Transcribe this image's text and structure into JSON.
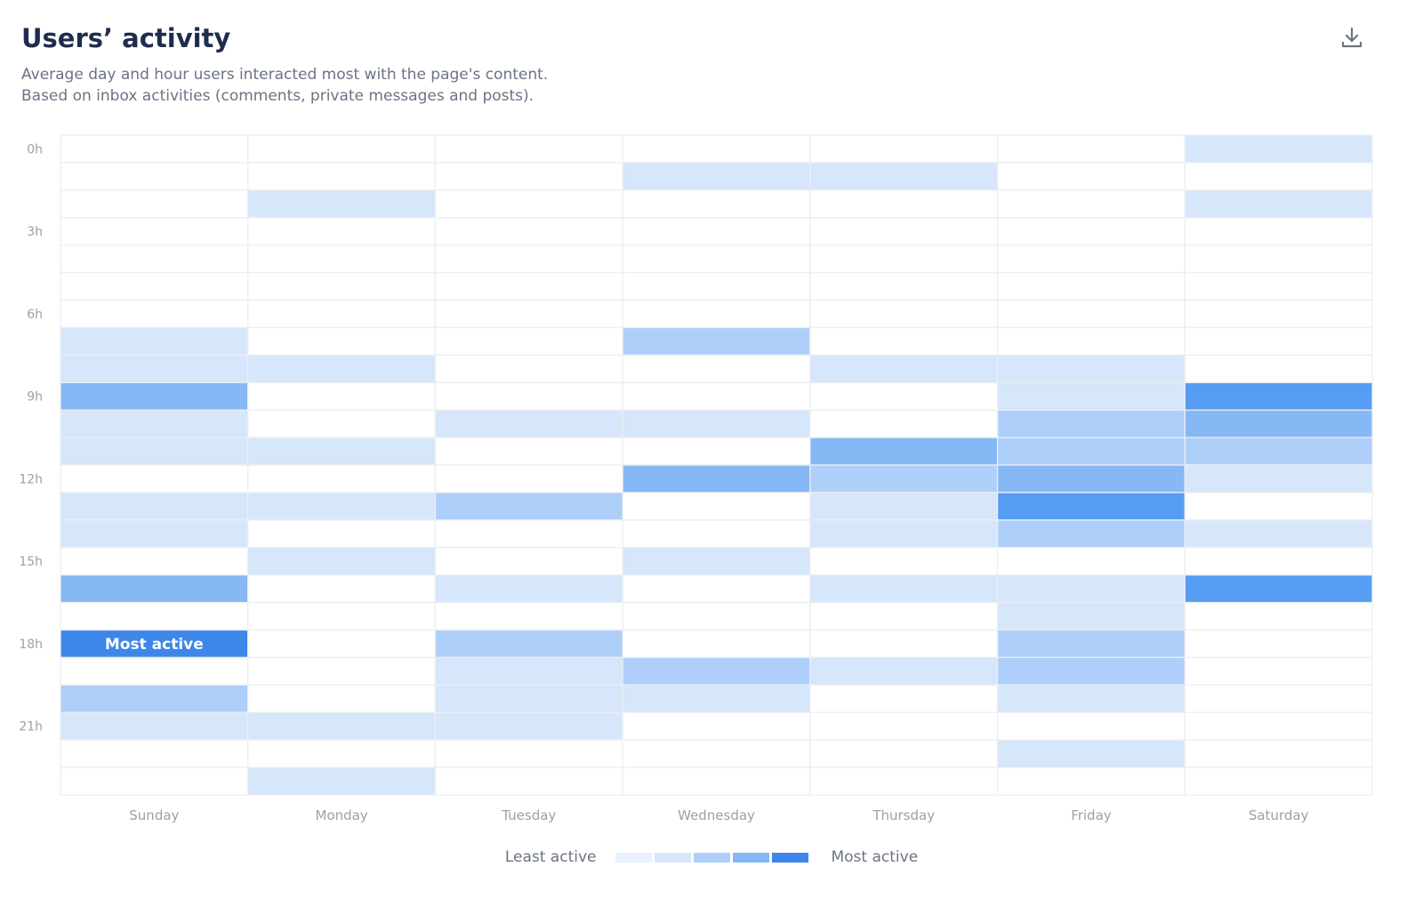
{
  "header": {
    "title": "Users’ activity",
    "subtitle_1": "Average day and hour users interacted most with the page's content.",
    "subtitle_2": "Based on inbox activities (comments, private messages and posts).",
    "download_icon": "download-icon"
  },
  "legend": {
    "least": "Least active",
    "most": "Most active",
    "colors": [
      "#e8f1fd",
      "#d6e6fb",
      "#aecff9",
      "#86b8f5",
      "#3f86ea"
    ]
  },
  "chart_data": {
    "type": "heatmap",
    "title": "Users’ activity",
    "x_categories": [
      "Sunday",
      "Monday",
      "Tuesday",
      "Wednesday",
      "Thursday",
      "Friday",
      "Saturday"
    ],
    "y_tick_labels": [
      "0h",
      "3h",
      "6h",
      "9h",
      "12h",
      "15h",
      "18h",
      "21h"
    ],
    "y_hours": [
      0,
      1,
      2,
      3,
      4,
      5,
      6,
      7,
      8,
      9,
      10,
      11,
      12,
      13,
      14,
      15,
      16,
      17,
      18,
      19,
      20,
      21,
      22,
      23
    ],
    "scale": "activity level 0 (none) to 5 (most active)",
    "level_colors": [
      "#ffffff",
      "#d6e6fb",
      "#aecff9",
      "#86b8f5",
      "#559cf2",
      "#3d86ea"
    ],
    "values": [
      [
        0,
        0,
        0,
        0,
        0,
        0,
        1
      ],
      [
        0,
        0,
        0,
        1,
        1,
        0,
        0
      ],
      [
        0,
        1,
        0,
        0,
        0,
        0,
        1
      ],
      [
        0,
        0,
        0,
        0,
        0,
        0,
        0
      ],
      [
        0,
        0,
        0,
        0,
        0,
        0,
        0
      ],
      [
        0,
        0,
        0,
        0,
        0,
        0,
        0
      ],
      [
        0,
        0,
        0,
        0,
        0,
        0,
        0
      ],
      [
        1,
        0,
        0,
        2,
        0,
        0,
        0
      ],
      [
        1,
        1,
        0,
        0,
        1,
        1,
        0
      ],
      [
        3,
        0,
        0,
        0,
        0,
        1,
        4
      ],
      [
        1,
        0,
        1,
        1,
        0,
        2,
        3
      ],
      [
        1,
        1,
        0,
        0,
        3,
        2,
        2
      ],
      [
        0,
        0,
        0,
        3,
        2,
        3,
        1
      ],
      [
        1,
        1,
        2,
        0,
        1,
        4,
        0
      ],
      [
        1,
        0,
        0,
        0,
        1,
        2,
        1
      ],
      [
        0,
        1,
        0,
        1,
        0,
        0,
        0
      ],
      [
        3,
        0,
        1,
        0,
        1,
        1,
        4
      ],
      [
        0,
        0,
        0,
        0,
        0,
        1,
        0
      ],
      [
        5,
        0,
        2,
        0,
        0,
        2,
        0
      ],
      [
        0,
        0,
        1,
        2,
        1,
        2,
        0
      ],
      [
        2,
        0,
        1,
        1,
        0,
        1,
        0
      ],
      [
        1,
        1,
        1,
        0,
        0,
        0,
        0
      ],
      [
        0,
        0,
        0,
        0,
        0,
        1,
        0
      ],
      [
        0,
        1,
        0,
        0,
        0,
        0,
        0
      ]
    ],
    "annotation": {
      "day": "Sunday",
      "hour": 18,
      "text": "Most active"
    },
    "legend_placement": "bottom-center"
  }
}
